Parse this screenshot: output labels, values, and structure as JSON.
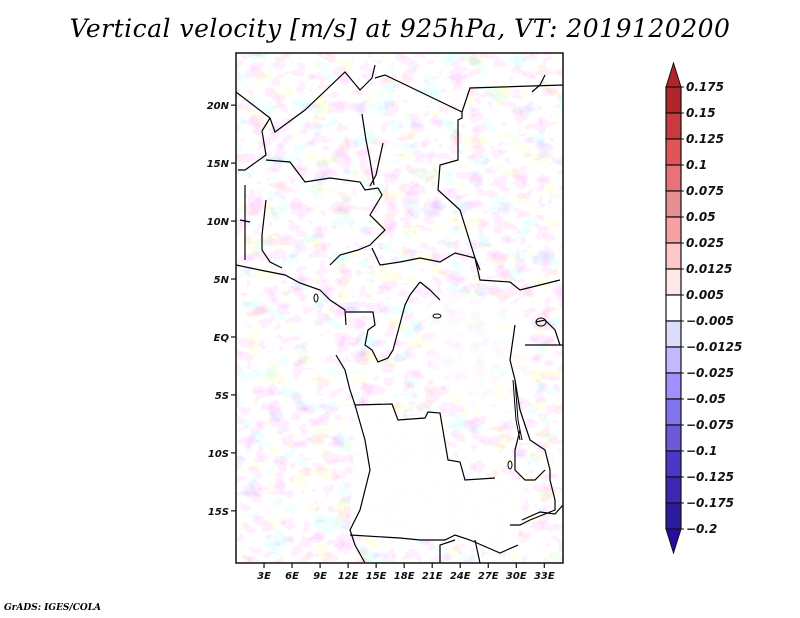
{
  "title": "Vertical velocity [m/s] at 925hPa, VT: 2019120200",
  "footer": "GrADS: IGES/COLA",
  "map": {
    "variable": "Vertical velocity",
    "units": "m/s",
    "level": "925hPa",
    "valid_time": "2019120200",
    "region": "Central / West Africa",
    "lon_range": [
      0,
      35
    ],
    "lat_range": [
      -19.5,
      24.5
    ],
    "lat_ticks": [
      "20N",
      "15N",
      "10N",
      "5N",
      "EQ",
      "5S",
      "10S",
      "15S"
    ],
    "lat_tick_values": [
      20,
      15,
      10,
      5,
      0,
      -5,
      -10,
      -15
    ],
    "lon_ticks": [
      "3E",
      "6E",
      "9E",
      "12E",
      "15E",
      "18E",
      "21E",
      "24E",
      "27E",
      "30E",
      "33E"
    ],
    "lon_tick_values": [
      3,
      6,
      9,
      12,
      15,
      18,
      21,
      24,
      27,
      30,
      33
    ]
  },
  "colorbar": {
    "labels": [
      "0.175",
      "0.15",
      "0.125",
      "0.1",
      "0.075",
      "0.05",
      "0.025",
      "0.0125",
      "0.005",
      "-0.005",
      "-0.0125",
      "-0.025",
      "-0.05",
      "-0.075",
      "-0.1",
      "-0.125",
      "-0.175",
      "-0.2"
    ],
    "colors": [
      "#b0262b",
      "#c93a3e",
      "#e15457",
      "#e8727a",
      "#e48f92",
      "#f6a2a4",
      "#fec8c9",
      "#ffe6e7",
      "#ffffff",
      "#dcdcfd",
      "#c3b8fd",
      "#a18ffd",
      "#8274ef",
      "#6d5ad8",
      "#4a38c8",
      "#3d27b4",
      "#2c1ca0"
    ],
    "top_arrow_color": "#b0262b",
    "bottom_arrow_color": "#2a0ba0"
  }
}
